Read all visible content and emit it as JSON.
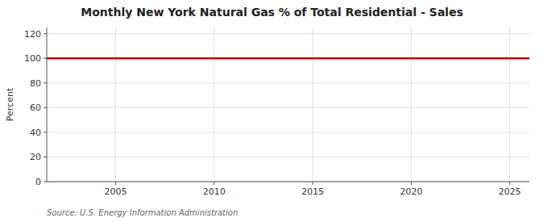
{
  "chart_data": {
    "type": "line",
    "title": "Monthly New York Natural Gas % of Total Residential - Sales",
    "ylabel": "Percent",
    "source": "Source: U.S. Energy Information Administration",
    "x": [
      2001.5,
      2026
    ],
    "values": [
      100,
      100
    ],
    "color": "#cc0000",
    "xlim": [
      2001.5,
      2026
    ],
    "ylim": [
      0,
      125
    ],
    "xticks": [
      2005,
      2010,
      2015,
      2020,
      2025
    ],
    "yticks": [
      0,
      20,
      40,
      60,
      80,
      100,
      120
    ],
    "grid": true
  }
}
